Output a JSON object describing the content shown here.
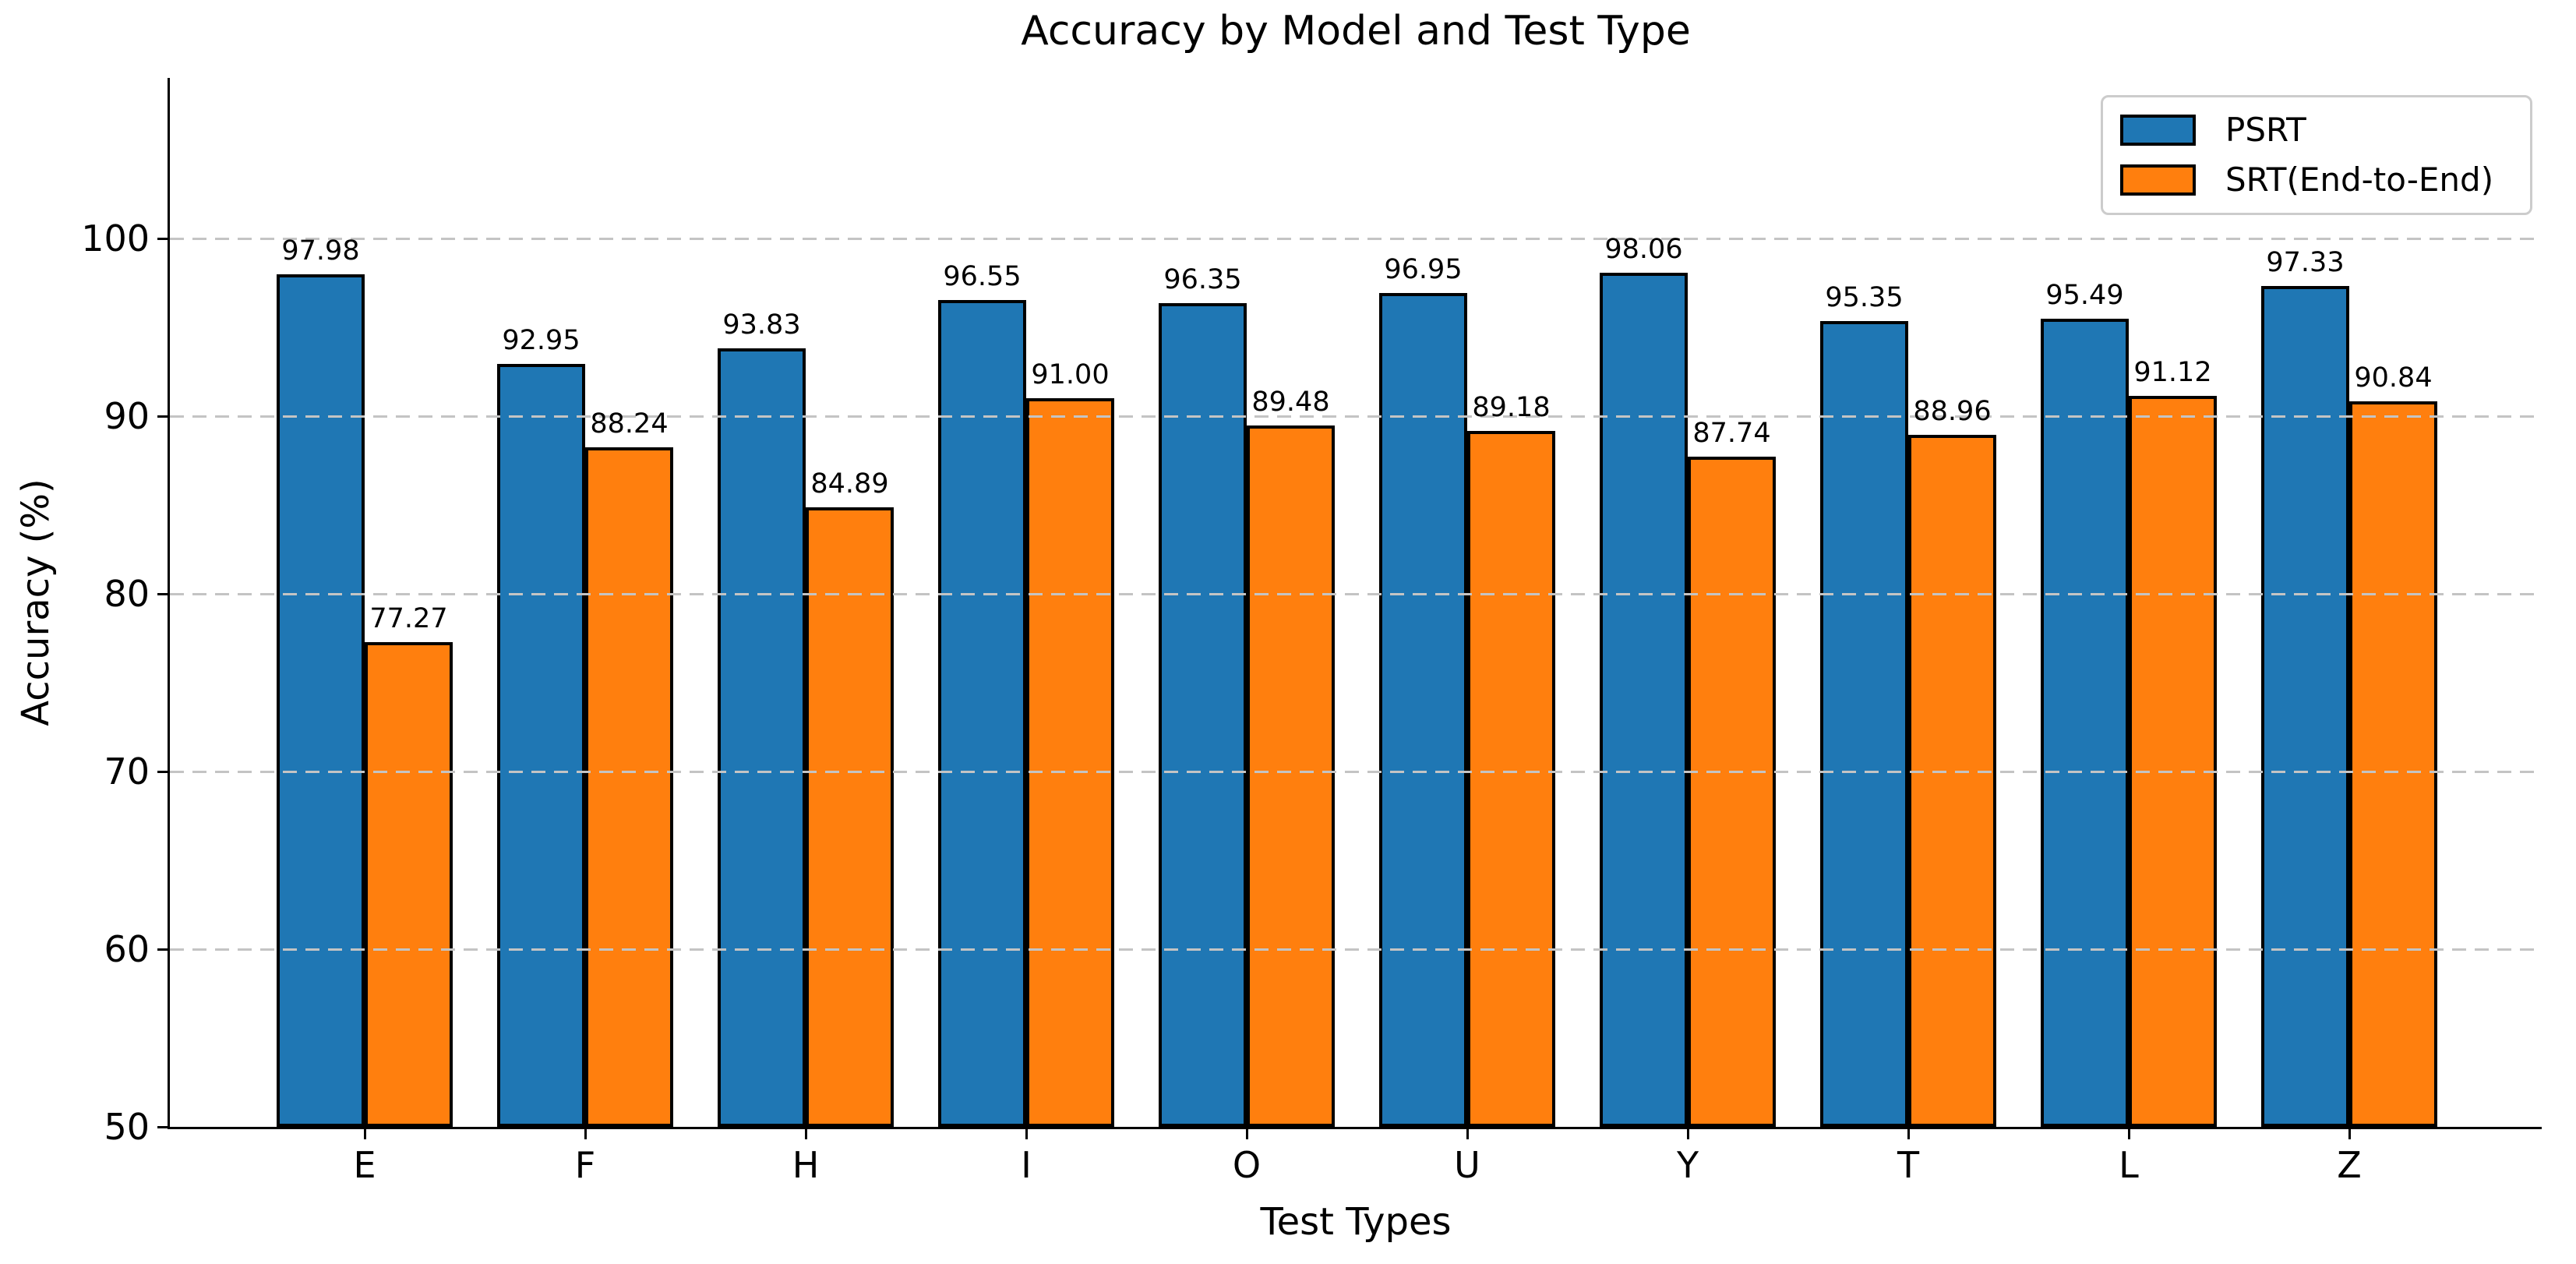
{
  "chart_data": {
    "type": "bar",
    "title": "Accuracy by Model and Test Type",
    "xlabel": "Test Types",
    "ylabel": "Accuracy (%)",
    "categories": [
      "E",
      "F",
      "H",
      "I",
      "O",
      "U",
      "Y",
      "T",
      "L",
      "Z"
    ],
    "series": [
      {
        "name": "PSRT",
        "color": "#1f77b4",
        "values": [
          97.98,
          92.95,
          93.83,
          96.55,
          96.35,
          96.95,
          98.06,
          95.35,
          95.49,
          97.33
        ]
      },
      {
        "name": "SRT(End-to-End)",
        "color": "#ff7f0e",
        "values": [
          77.27,
          88.24,
          84.89,
          91.0,
          89.48,
          89.18,
          87.74,
          88.96,
          91.12,
          90.84
        ]
      }
    ],
    "bar_labels_decimals": 2,
    "yticks": [
      50,
      60,
      70,
      80,
      90,
      100
    ],
    "ylim": [
      50,
      109
    ],
    "grid": true,
    "grid_style": "dashed",
    "grid_color": "#c4c4c4",
    "edge_color": "#000000",
    "background": "#ffffff",
    "legend_position": "upper right"
  }
}
